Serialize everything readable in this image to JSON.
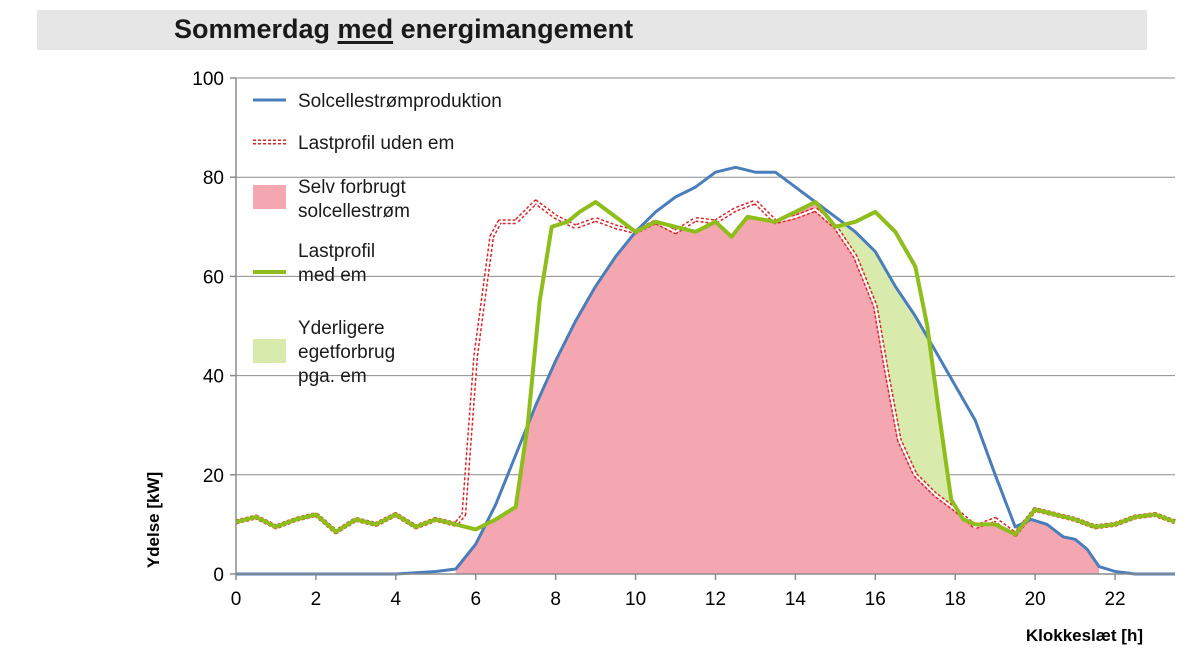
{
  "title": {
    "prefix": "Sommerdag ",
    "underlined": "med",
    "suffix": " energimangement"
  },
  "chart_data": {
    "type": "line",
    "xlabel": "Klokkeslæt [h]",
    "ylabel": "Ydelse [kW]",
    "xlim": [
      0,
      23.5
    ],
    "ylim": [
      0,
      100
    ],
    "x_ticks": [
      0,
      2,
      4,
      6,
      8,
      10,
      12,
      14,
      16,
      18,
      20,
      22
    ],
    "y_ticks": [
      0,
      20,
      40,
      60,
      80,
      100
    ],
    "grid": "horizontal",
    "legend_placement": "top-left",
    "colors": {
      "solar": "#4a7ebb",
      "load_without_em": "#d9262c",
      "self_consumed": "#f4a7b0",
      "load_with_em": "#8fbd1c",
      "additional": "#d9eaad"
    },
    "legend": [
      {
        "key": "solar",
        "lines": [
          "Solcellestrømproduktion"
        ],
        "style": "line"
      },
      {
        "key": "load_without_em",
        "lines": [
          "Lastprofil uden em"
        ],
        "style": "dashed-double"
      },
      {
        "key": "self_consumed",
        "lines": [
          "Selv forbrugt",
          "solcellestrøm"
        ],
        "style": "fill"
      },
      {
        "key": "load_with_em",
        "lines": [
          "Lastprofil",
          "med em"
        ],
        "style": "thick-line"
      },
      {
        "key": "additional",
        "lines": [
          "Yderligere",
          "egetforbrug",
          "pga. em"
        ],
        "style": "fill"
      }
    ],
    "series": [
      {
        "name": "Solcellestrømproduktion",
        "key": "solar",
        "points": [
          [
            0,
            0
          ],
          [
            4,
            0
          ],
          [
            5,
            0.5
          ],
          [
            5.5,
            1
          ],
          [
            6,
            6
          ],
          [
            6.5,
            14
          ],
          [
            7,
            24
          ],
          [
            7.5,
            34
          ],
          [
            8,
            43
          ],
          [
            8.5,
            51
          ],
          [
            9,
            58
          ],
          [
            9.5,
            64
          ],
          [
            10,
            69
          ],
          [
            10.5,
            73
          ],
          [
            11,
            76
          ],
          [
            11.5,
            78
          ],
          [
            12,
            81
          ],
          [
            12.5,
            82
          ],
          [
            13,
            81
          ],
          [
            13.5,
            81
          ],
          [
            14,
            78
          ],
          [
            14.5,
            75
          ],
          [
            15,
            72
          ],
          [
            15.5,
            69
          ],
          [
            16,
            65
          ],
          [
            16.5,
            58
          ],
          [
            17,
            52
          ],
          [
            17.5,
            45
          ],
          [
            18,
            38
          ],
          [
            18.5,
            31
          ],
          [
            19,
            20
          ],
          [
            19.5,
            9.5
          ],
          [
            19.9,
            11
          ],
          [
            20.3,
            10
          ],
          [
            20.7,
            7.5
          ],
          [
            21,
            7
          ],
          [
            21.3,
            5
          ],
          [
            21.6,
            1.5
          ],
          [
            22,
            0.5
          ],
          [
            22.5,
            0
          ],
          [
            23.5,
            0
          ]
        ]
      },
      {
        "name": "Lastprofil uden em",
        "key": "load_without_em",
        "points": [
          [
            0,
            10.5
          ],
          [
            0.5,
            11.5
          ],
          [
            1,
            9.5
          ],
          [
            1.5,
            11
          ],
          [
            2,
            12
          ],
          [
            2.5,
            8.5
          ],
          [
            3,
            11
          ],
          [
            3.5,
            10
          ],
          [
            4,
            12
          ],
          [
            4.5,
            9.5
          ],
          [
            5,
            11
          ],
          [
            5.5,
            10
          ],
          [
            5.7,
            12
          ],
          [
            6,
            44
          ],
          [
            6.2,
            56
          ],
          [
            6.4,
            68
          ],
          [
            6.6,
            71
          ],
          [
            7,
            71
          ],
          [
            7.5,
            75
          ],
          [
            8,
            72
          ],
          [
            8.5,
            70
          ],
          [
            9,
            71.5
          ],
          [
            9.5,
            70
          ],
          [
            10,
            69
          ],
          [
            10.5,
            71
          ],
          [
            11,
            69
          ],
          [
            11.5,
            71.5
          ],
          [
            12,
            71
          ],
          [
            12.5,
            73.5
          ],
          [
            13,
            75
          ],
          [
            13.5,
            71
          ],
          [
            14,
            72
          ],
          [
            14.5,
            73.5
          ],
          [
            15,
            70
          ],
          [
            15.5,
            64
          ],
          [
            16,
            54
          ],
          [
            16.3,
            40
          ],
          [
            16.6,
            27
          ],
          [
            17,
            20
          ],
          [
            17.5,
            16
          ],
          [
            18,
            13
          ],
          [
            18.5,
            9.5
          ],
          [
            19,
            11
          ],
          [
            19.5,
            8
          ],
          [
            20,
            13
          ],
          [
            20.5,
            12
          ],
          [
            21,
            11
          ],
          [
            21.5,
            9.5
          ],
          [
            22,
            10
          ],
          [
            22.5,
            11.5
          ],
          [
            23,
            12
          ],
          [
            23.5,
            10.5
          ]
        ]
      },
      {
        "name": "Lastprofil med em",
        "key": "load_with_em",
        "points": [
          [
            0,
            10.5
          ],
          [
            0.5,
            11.5
          ],
          [
            1,
            9.5
          ],
          [
            1.5,
            11
          ],
          [
            2,
            12
          ],
          [
            2.5,
            8.5
          ],
          [
            3,
            11
          ],
          [
            3.5,
            10
          ],
          [
            4,
            12
          ],
          [
            4.5,
            9.5
          ],
          [
            5,
            11
          ],
          [
            5.5,
            10
          ],
          [
            6,
            9
          ],
          [
            6.5,
            11
          ],
          [
            7,
            13.5
          ],
          [
            7.3,
            30
          ],
          [
            7.6,
            55
          ],
          [
            7.9,
            70
          ],
          [
            8.3,
            71
          ],
          [
            8.6,
            73
          ],
          [
            9,
            75
          ],
          [
            9.5,
            72
          ],
          [
            10,
            69
          ],
          [
            10.5,
            71
          ],
          [
            11,
            70
          ],
          [
            11.5,
            69
          ],
          [
            12,
            71
          ],
          [
            12.4,
            68
          ],
          [
            12.8,
            72
          ],
          [
            13.5,
            71
          ],
          [
            14,
            73
          ],
          [
            14.5,
            75
          ],
          [
            15,
            70
          ],
          [
            15.5,
            71
          ],
          [
            16,
            73
          ],
          [
            16.5,
            69
          ],
          [
            17,
            62
          ],
          [
            17.3,
            50
          ],
          [
            17.6,
            32
          ],
          [
            17.9,
            15
          ],
          [
            18.2,
            11
          ],
          [
            18.5,
            10
          ],
          [
            19,
            10
          ],
          [
            19.5,
            8
          ],
          [
            20,
            13
          ],
          [
            20.5,
            12
          ],
          [
            21,
            11
          ],
          [
            21.5,
            9.5
          ],
          [
            22,
            10
          ],
          [
            22.5,
            11.5
          ],
          [
            23,
            12
          ],
          [
            23.5,
            10.5
          ]
        ]
      }
    ],
    "fill_min": [
      {
        "name": "Selv forbrugt solcellestrøm",
        "key": "self_consumed",
        "of": [
          "solar",
          "load_with_em"
        ],
        "x_range": [
          5.5,
          21.6
        ]
      },
      {
        "name": "Yderligere egetforbrug pga. em",
        "key": "additional",
        "between": [
          "load_without_em",
          "load_with_em",
          "solar"
        ],
        "x_ranges": [
          [
            6.4,
            7.6
          ],
          [
            14.8,
            18.6
          ]
        ]
      }
    ]
  }
}
